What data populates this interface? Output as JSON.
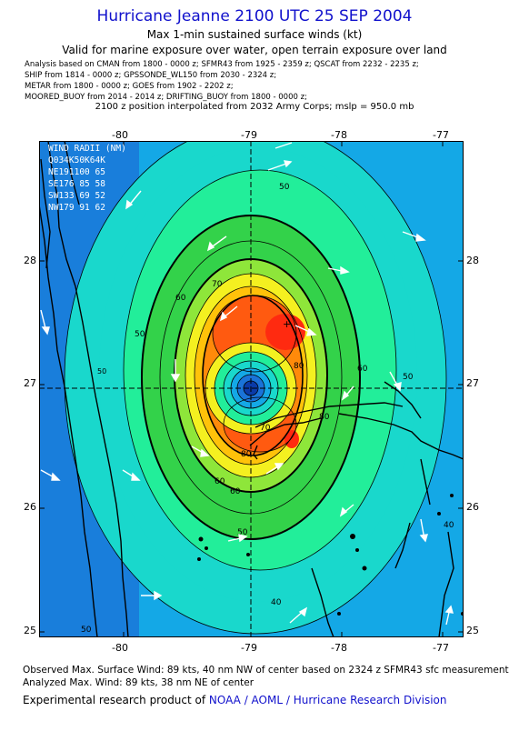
{
  "header": {
    "title": "Hurricane Jeanne 2100 UTC 25 SEP 2004",
    "subtitle1": "Max 1-min sustained surface winds (kt)",
    "subtitle2": "Valid for marine exposure over water, open terrain exposure over land"
  },
  "analysis_sources": [
    "Analysis based on  CMAN from 1800 - 0000 z;  SFMR43 from 1925 - 2359 z;  QSCAT from 2232 - 2235 z;",
    "SHIP from 1814 - 0000 z;  GPSSONDE_WL150 from 2030 - 2324 z;",
    "METAR from 1800 - 0000 z;  GOES from 1902 - 2202 z;",
    "MOORED_BUOY from 2014 - 2014 z;  DRIFTING_BUOY from 1800 - 0000 z;"
  ],
  "position_note": "2100 z position interpolated from 2032 Army Corps; mslp = 950.0 mb",
  "map": {
    "lon_ticks": [
      "-80",
      "-79",
      "-78",
      "-77"
    ],
    "lat_ticks": [
      "28",
      "27",
      "26",
      "25"
    ],
    "lon_range": [
      -80.65,
      -76.75
    ],
    "lat_range": [
      24.95,
      28.95
    ],
    "center": {
      "lon": -78.8,
      "lat": 26.97
    },
    "contour_labels": [
      "50",
      "50",
      "50",
      "60",
      "60",
      "70",
      "70",
      "80",
      "80",
      "80",
      "60",
      "60",
      "50",
      "40",
      "40",
      "50",
      "50"
    ],
    "colors": {
      "low": "#1a73d8",
      "mid_low": "#14a8e6",
      "aqua": "#19d8cc",
      "seafoam": "#22ee9a",
      "green": "#33d24a",
      "light_green": "#8ee63a",
      "yellow": "#f4f020",
      "gold": "#ffc20a",
      "orange": "#ff8a0a",
      "red_orange": "#ff5a10",
      "red": "#ff2a10",
      "land": "#000000",
      "arrow": "#ffffff"
    }
  },
  "wind_radii": {
    "header": "WIND RADII (NM)",
    "columns": "Q034K50K64K",
    "rows": [
      "NE191100 65",
      "SE176 85 58",
      "SW133 69 52",
      "NW179 91 62"
    ]
  },
  "footer": {
    "observed": "Observed Max. Surface Wind: 89 kts, 40 nm NW of center based on 2324 z SFMR43 sfc measurement",
    "analyzed": "Analyzed Max. Wind: 89 kts, 38 nm NE of center",
    "research_prefix": "Experimental research product of ",
    "research_org": "NOAA / AOML / Hurricane Research Division"
  }
}
